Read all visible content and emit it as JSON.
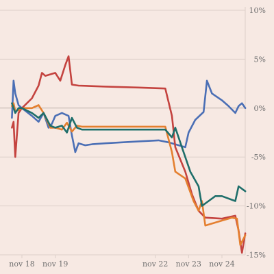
{
  "chart_data": {
    "type": "line",
    "title": "",
    "xlabel": "",
    "ylabel": "",
    "x_ticks": [
      {
        "label": "nov 18",
        "day": 18
      },
      {
        "label": "nov 19",
        "day": 19
      },
      {
        "label": "nov 22",
        "day": 22
      },
      {
        "label": "nov 23",
        "day": 23
      },
      {
        "label": "nov 24",
        "day": 24
      }
    ],
    "y_ticks": [
      {
        "label": "10%",
        "value": 10
      },
      {
        "label": "5%",
        "value": 5
      },
      {
        "label": "0%",
        "value": 0
      },
      {
        "label": "-5%",
        "value": -5
      },
      {
        "label": "-10%",
        "value": -10
      },
      {
        "label": "-15%",
        "value": -15
      }
    ],
    "ylim": [
      -15,
      10
    ],
    "grid": true,
    "legend": "none",
    "colors": {
      "background": "#f7e9e3",
      "grid": "#dccfc9",
      "tick_text": "#6f6f6f"
    },
    "series": [
      {
        "color": "#4b6fb5",
        "points": [
          [
            17.7,
            -1.0
          ],
          [
            17.75,
            2.8
          ],
          [
            17.8,
            1.5
          ],
          [
            17.9,
            0.3
          ],
          [
            18.0,
            0
          ],
          [
            18.3,
            -0.8
          ],
          [
            18.5,
            -1.4
          ],
          [
            18.65,
            -0.5
          ],
          [
            18.8,
            -2.0
          ],
          [
            18.9,
            -1.6
          ],
          [
            19.0,
            -0.8
          ],
          [
            19.2,
            -0.5
          ],
          [
            19.4,
            -0.8
          ],
          [
            19.5,
            -2.8
          ],
          [
            19.6,
            -4.5
          ],
          [
            19.7,
            -3.6
          ],
          [
            19.9,
            -3.8
          ],
          [
            20.1,
            -3.7
          ],
          [
            20.5,
            -3.6
          ],
          [
            21.0,
            -3.5
          ],
          [
            21.5,
            -3.4
          ],
          [
            22.1,
            -3.3
          ],
          [
            22.4,
            -3.5
          ],
          [
            22.9,
            -4.0
          ],
          [
            23.0,
            -2.5
          ],
          [
            23.2,
            -1.2
          ],
          [
            23.45,
            -0.4
          ],
          [
            23.55,
            2.8
          ],
          [
            23.7,
            1.5
          ],
          [
            24.0,
            0.8
          ],
          [
            24.2,
            0.2
          ],
          [
            24.4,
            -0.5
          ],
          [
            24.5,
            0.2
          ],
          [
            24.6,
            0.5
          ],
          [
            24.7,
            0
          ]
        ]
      },
      {
        "color": "#c4433f",
        "points": [
          [
            17.7,
            -2.0
          ],
          [
            17.75,
            -1.4
          ],
          [
            17.8,
            -5.0
          ],
          [
            17.9,
            -0.5
          ],
          [
            18.0,
            0
          ],
          [
            18.3,
            1.0
          ],
          [
            18.5,
            2.3
          ],
          [
            18.6,
            3.6
          ],
          [
            18.7,
            3.3
          ],
          [
            19.0,
            3.6
          ],
          [
            19.15,
            2.8
          ],
          [
            19.3,
            4.4
          ],
          [
            19.4,
            5.3
          ],
          [
            19.5,
            2.4
          ],
          [
            19.7,
            2.3
          ],
          [
            20.5,
            2.2
          ],
          [
            21.5,
            2.1
          ],
          [
            22.3,
            2.0
          ],
          [
            22.5,
            -0.8
          ],
          [
            22.6,
            -4.0
          ],
          [
            22.9,
            -6.5
          ],
          [
            23.1,
            -8.8
          ],
          [
            23.3,
            -10.5
          ],
          [
            23.5,
            -11.2
          ],
          [
            24.0,
            -11.3
          ],
          [
            24.4,
            -11.0
          ],
          [
            24.5,
            -12.5
          ],
          [
            24.6,
            -14.8
          ],
          [
            24.7,
            -12.8
          ]
        ]
      },
      {
        "color": "#e47f2f",
        "points": [
          [
            17.7,
            0.2
          ],
          [
            17.75,
            0.5
          ],
          [
            17.8,
            -0.3
          ],
          [
            17.9,
            -0.2
          ],
          [
            18.0,
            0
          ],
          [
            18.3,
            0
          ],
          [
            18.5,
            0.3
          ],
          [
            18.65,
            -0.5
          ],
          [
            18.85,
            -2.0
          ],
          [
            19.0,
            -2.0
          ],
          [
            19.2,
            -2.2
          ],
          [
            19.35,
            -1.5
          ],
          [
            19.5,
            -2.4
          ],
          [
            19.65,
            -1.8
          ],
          [
            19.8,
            -1.9
          ],
          [
            20.5,
            -1.9
          ],
          [
            21.5,
            -1.9
          ],
          [
            22.3,
            -1.9
          ],
          [
            22.5,
            -4.5
          ],
          [
            22.6,
            -6.5
          ],
          [
            22.9,
            -7.2
          ],
          [
            23.15,
            -9.5
          ],
          [
            23.3,
            -10.5
          ],
          [
            23.4,
            -9.5
          ],
          [
            23.5,
            -12.0
          ],
          [
            24.0,
            -11.5
          ],
          [
            24.3,
            -11.2
          ],
          [
            24.45,
            -11.3
          ],
          [
            24.55,
            -14.0
          ],
          [
            24.7,
            -13.0
          ]
        ]
      },
      {
        "color": "#1e6e6a",
        "points": [
          [
            17.7,
            0.5
          ],
          [
            17.75,
            0
          ],
          [
            17.8,
            -0.5
          ],
          [
            17.9,
            0
          ],
          [
            18.0,
            0
          ],
          [
            18.3,
            -0.5
          ],
          [
            18.5,
            -1.0
          ],
          [
            18.65,
            -0.5
          ],
          [
            18.85,
            -1.8
          ],
          [
            19.0,
            -2.0
          ],
          [
            19.2,
            -1.8
          ],
          [
            19.35,
            -2.5
          ],
          [
            19.5,
            -1.0
          ],
          [
            19.65,
            -2.0
          ],
          [
            19.8,
            -2.2
          ],
          [
            20.5,
            -2.2
          ],
          [
            21.5,
            -2.2
          ],
          [
            22.3,
            -2.2
          ],
          [
            22.5,
            -3.0
          ],
          [
            22.6,
            -2.0
          ],
          [
            22.85,
            -4.5
          ],
          [
            23.05,
            -6.5
          ],
          [
            23.3,
            -8.0
          ],
          [
            23.4,
            -10.0
          ],
          [
            23.6,
            -9.5
          ],
          [
            23.8,
            -9.0
          ],
          [
            24.0,
            -9.0
          ],
          [
            24.4,
            -9.5
          ],
          [
            24.5,
            -8.0
          ],
          [
            24.7,
            -8.5
          ]
        ]
      }
    ]
  }
}
